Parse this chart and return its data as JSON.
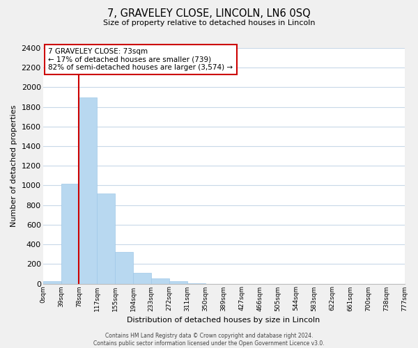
{
  "title": "7, GRAVELEY CLOSE, LINCOLN, LN6 0SQ",
  "subtitle": "Size of property relative to detached houses in Lincoln",
  "xlabel": "Distribution of detached houses by size in Lincoln",
  "ylabel": "Number of detached properties",
  "bin_labels": [
    "0sqm",
    "39sqm",
    "78sqm",
    "117sqm",
    "155sqm",
    "194sqm",
    "233sqm",
    "272sqm",
    "311sqm",
    "350sqm",
    "389sqm",
    "427sqm",
    "466sqm",
    "505sqm",
    "544sqm",
    "583sqm",
    "622sqm",
    "661sqm",
    "700sqm",
    "738sqm",
    "777sqm"
  ],
  "bar_values": [
    25,
    1020,
    1900,
    920,
    320,
    110,
    50,
    25,
    5,
    0,
    0,
    0,
    0,
    0,
    0,
    0,
    0,
    0,
    0,
    0
  ],
  "bar_color": "#b8d8f0",
  "bar_edge_color": "#9fc8e8",
  "ylim": [
    0,
    2400
  ],
  "yticks": [
    0,
    200,
    400,
    600,
    800,
    1000,
    1200,
    1400,
    1600,
    1800,
    2000,
    2200,
    2400
  ],
  "vline_x_index": 2,
  "vline_color": "#cc0000",
  "annotation_line1": "7 GRAVELEY CLOSE: 73sqm",
  "annotation_line2": "← 17% of detached houses are smaller (739)",
  "annotation_line3": "82% of semi-detached houses are larger (3,574) →",
  "annotation_box_color": "white",
  "annotation_box_edge": "#cc0000",
  "footer_line1": "Contains HM Land Registry data © Crown copyright and database right 2024.",
  "footer_line2": "Contains public sector information licensed under the Open Government Licence v3.0.",
  "background_color": "#f0f0f0",
  "plot_background_color": "white",
  "grid_color": "#c8d8e8"
}
